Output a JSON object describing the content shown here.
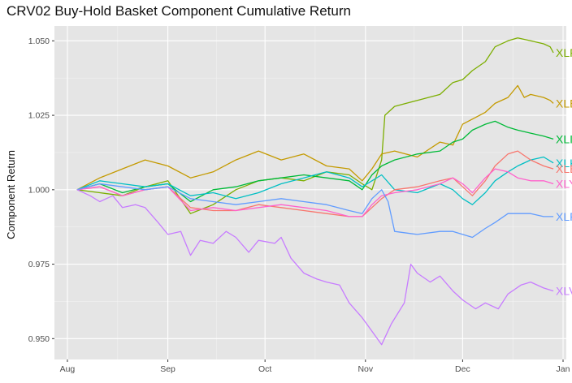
{
  "chart_data": {
    "type": "line",
    "title": "CRV02 Buy-Hold Basket Component Cumulative Return",
    "xlabel": "",
    "ylabel": "Component Return",
    "xlim": [
      "2017-07-28",
      "2018-01-02"
    ],
    "ylim": [
      0.943,
      1.055
    ],
    "x_ticks": [
      {
        "label": "Aug",
        "date": "2017-08-01"
      },
      {
        "label": "Sep",
        "date": "2017-09-01"
      },
      {
        "label": "Oct",
        "date": "2017-10-01"
      },
      {
        "label": "Nov",
        "date": "2017-11-01"
      },
      {
        "label": "Dec",
        "date": "2017-12-01"
      },
      {
        "label": "Jan",
        "date": "2018-01-01"
      }
    ],
    "y_ticks": [
      0.95,
      0.975,
      1.0,
      1.025,
      1.05
    ],
    "y_tick_labels": [
      "0.950",
      "0.975",
      "1.000",
      "1.025",
      "1.050"
    ],
    "grid": true,
    "legend": "direct labels at line ends",
    "background": "#e5e5e5",
    "series": [
      {
        "name": "XLF",
        "color": "#7cae00",
        "points": [
          [
            "2017-08-04",
            1.0
          ],
          [
            "2017-08-11",
            0.999
          ],
          [
            "2017-08-18",
            0.998
          ],
          [
            "2017-08-25",
            1.001
          ],
          [
            "2017-09-01",
            1.003
          ],
          [
            "2017-09-08",
            0.992
          ],
          [
            "2017-09-15",
            0.995
          ],
          [
            "2017-09-22",
            1.0
          ],
          [
            "2017-09-29",
            1.003
          ],
          [
            "2017-10-06",
            1.004
          ],
          [
            "2017-10-13",
            1.003
          ],
          [
            "2017-10-20",
            1.006
          ],
          [
            "2017-10-27",
            1.005
          ],
          [
            "2017-10-31",
            1.002
          ],
          [
            "2017-11-03",
            1.0
          ],
          [
            "2017-11-06",
            1.01
          ],
          [
            "2017-11-07",
            1.025
          ],
          [
            "2017-11-10",
            1.028
          ],
          [
            "2017-11-17",
            1.03
          ],
          [
            "2017-11-24",
            1.032
          ],
          [
            "2017-11-28",
            1.036
          ],
          [
            "2017-12-01",
            1.037
          ],
          [
            "2017-12-04",
            1.04
          ],
          [
            "2017-12-08",
            1.043
          ],
          [
            "2017-12-11",
            1.048
          ],
          [
            "2017-12-15",
            1.05
          ],
          [
            "2017-12-18",
            1.051
          ],
          [
            "2017-12-22",
            1.05
          ],
          [
            "2017-12-26",
            1.049
          ],
          [
            "2017-12-28",
            1.048
          ],
          [
            "2017-12-29",
            1.046
          ]
        ]
      },
      {
        "name": "XLE",
        "color": "#c49a00",
        "points": [
          [
            "2017-08-04",
            1.0
          ],
          [
            "2017-08-11",
            1.004
          ],
          [
            "2017-08-18",
            1.007
          ],
          [
            "2017-08-25",
            1.01
          ],
          [
            "2017-09-01",
            1.008
          ],
          [
            "2017-09-08",
            1.004
          ],
          [
            "2017-09-15",
            1.006
          ],
          [
            "2017-09-22",
            1.01
          ],
          [
            "2017-09-29",
            1.013
          ],
          [
            "2017-10-06",
            1.01
          ],
          [
            "2017-10-13",
            1.012
          ],
          [
            "2017-10-20",
            1.008
          ],
          [
            "2017-10-27",
            1.007
          ],
          [
            "2017-10-31",
            1.003
          ],
          [
            "2017-11-03",
            1.007
          ],
          [
            "2017-11-06",
            1.012
          ],
          [
            "2017-11-10",
            1.013
          ],
          [
            "2017-11-17",
            1.011
          ],
          [
            "2017-11-24",
            1.016
          ],
          [
            "2017-11-28",
            1.015
          ],
          [
            "2017-12-01",
            1.022
          ],
          [
            "2017-12-08",
            1.026
          ],
          [
            "2017-12-11",
            1.029
          ],
          [
            "2017-12-15",
            1.031
          ],
          [
            "2017-12-18",
            1.035
          ],
          [
            "2017-12-20",
            1.031
          ],
          [
            "2017-12-22",
            1.032
          ],
          [
            "2017-12-26",
            1.031
          ],
          [
            "2017-12-28",
            1.03
          ],
          [
            "2017-12-29",
            1.029
          ]
        ]
      },
      {
        "name": "XLI",
        "color": "#00ba38",
        "points": [
          [
            "2017-08-04",
            1.0
          ],
          [
            "2017-08-11",
            1.002
          ],
          [
            "2017-08-18",
            0.999
          ],
          [
            "2017-08-25",
            1.001
          ],
          [
            "2017-09-01",
            1.002
          ],
          [
            "2017-09-08",
            0.996
          ],
          [
            "2017-09-15",
            1.0
          ],
          [
            "2017-09-22",
            1.001
          ],
          [
            "2017-09-29",
            1.003
          ],
          [
            "2017-10-06",
            1.004
          ],
          [
            "2017-10-13",
            1.005
          ],
          [
            "2017-10-20",
            1.004
          ],
          [
            "2017-10-27",
            1.003
          ],
          [
            "2017-10-31",
            1.0
          ],
          [
            "2017-11-03",
            1.005
          ],
          [
            "2017-11-06",
            1.008
          ],
          [
            "2017-11-10",
            1.01
          ],
          [
            "2017-11-17",
            1.012
          ],
          [
            "2017-11-24",
            1.013
          ],
          [
            "2017-11-28",
            1.016
          ],
          [
            "2017-12-01",
            1.017
          ],
          [
            "2017-12-04",
            1.02
          ],
          [
            "2017-12-08",
            1.022
          ],
          [
            "2017-12-11",
            1.023
          ],
          [
            "2017-12-15",
            1.021
          ],
          [
            "2017-12-18",
            1.02
          ],
          [
            "2017-12-22",
            1.019
          ],
          [
            "2017-12-26",
            1.018
          ],
          [
            "2017-12-29",
            1.017
          ]
        ]
      },
      {
        "name": "XLK",
        "color": "#00bfc4",
        "points": [
          [
            "2017-08-04",
            1.0
          ],
          [
            "2017-08-11",
            1.003
          ],
          [
            "2017-08-18",
            1.002
          ],
          [
            "2017-08-25",
            1.001
          ],
          [
            "2017-09-01",
            1.002
          ],
          [
            "2017-09-08",
            0.998
          ],
          [
            "2017-09-15",
            0.999
          ],
          [
            "2017-09-22",
            0.997
          ],
          [
            "2017-09-29",
            0.999
          ],
          [
            "2017-10-06",
            1.002
          ],
          [
            "2017-10-13",
            1.004
          ],
          [
            "2017-10-20",
            1.006
          ],
          [
            "2017-10-27",
            1.004
          ],
          [
            "2017-10-31",
            1.001
          ],
          [
            "2017-11-03",
            1.003
          ],
          [
            "2017-11-06",
            1.005
          ],
          [
            "2017-11-10",
            1.0
          ],
          [
            "2017-11-17",
            0.999
          ],
          [
            "2017-11-24",
            1.002
          ],
          [
            "2017-11-28",
            1.0
          ],
          [
            "2017-12-01",
            0.997
          ],
          [
            "2017-12-04",
            0.995
          ],
          [
            "2017-12-08",
            0.999
          ],
          [
            "2017-12-11",
            1.003
          ],
          [
            "2017-12-15",
            1.006
          ],
          [
            "2017-12-18",
            1.008
          ],
          [
            "2017-12-22",
            1.01
          ],
          [
            "2017-12-26",
            1.011
          ],
          [
            "2017-12-29",
            1.009
          ]
        ]
      },
      {
        "name": "XLB",
        "color": "#f8766d",
        "points": [
          [
            "2017-08-04",
            1.0
          ],
          [
            "2017-08-11",
            1.001
          ],
          [
            "2017-08-18",
            0.998
          ],
          [
            "2017-08-25",
            1.0
          ],
          [
            "2017-09-01",
            1.001
          ],
          [
            "2017-09-08",
            0.994
          ],
          [
            "2017-09-15",
            0.993
          ],
          [
            "2017-09-22",
            0.993
          ],
          [
            "2017-09-29",
            0.995
          ],
          [
            "2017-10-06",
            0.994
          ],
          [
            "2017-10-13",
            0.993
          ],
          [
            "2017-10-20",
            0.992
          ],
          [
            "2017-10-27",
            0.991
          ],
          [
            "2017-10-31",
            0.991
          ],
          [
            "2017-11-03",
            0.994
          ],
          [
            "2017-11-06",
            0.997
          ],
          [
            "2017-11-10",
            1.0
          ],
          [
            "2017-11-17",
            1.001
          ],
          [
            "2017-11-24",
            1.003
          ],
          [
            "2017-11-28",
            1.004
          ],
          [
            "2017-12-01",
            1.001
          ],
          [
            "2017-12-04",
            0.998
          ],
          [
            "2017-12-08",
            1.003
          ],
          [
            "2017-12-11",
            1.008
          ],
          [
            "2017-12-15",
            1.012
          ],
          [
            "2017-12-18",
            1.013
          ],
          [
            "2017-12-22",
            1.01
          ],
          [
            "2017-12-26",
            1.008
          ],
          [
            "2017-12-29",
            1.007
          ]
        ]
      },
      {
        "name": "XLY",
        "color": "#ff61cc",
        "points": [
          [
            "2017-08-04",
            1.0
          ],
          [
            "2017-08-11",
            1.001
          ],
          [
            "2017-08-18",
            0.998
          ],
          [
            "2017-08-25",
            1.0
          ],
          [
            "2017-09-01",
            1.001
          ],
          [
            "2017-09-08",
            0.993
          ],
          [
            "2017-09-15",
            0.994
          ],
          [
            "2017-09-22",
            0.993
          ],
          [
            "2017-09-29",
            0.994
          ],
          [
            "2017-10-06",
            0.995
          ],
          [
            "2017-10-13",
            0.994
          ],
          [
            "2017-10-20",
            0.993
          ],
          [
            "2017-10-27",
            0.991
          ],
          [
            "2017-10-31",
            0.991
          ],
          [
            "2017-11-03",
            0.995
          ],
          [
            "2017-11-06",
            0.998
          ],
          [
            "2017-11-10",
            0.999
          ],
          [
            "2017-11-17",
            1.0
          ],
          [
            "2017-11-24",
            1.002
          ],
          [
            "2017-11-28",
            1.004
          ],
          [
            "2017-12-01",
            1.002
          ],
          [
            "2017-12-04",
            0.999
          ],
          [
            "2017-12-08",
            1.004
          ],
          [
            "2017-12-11",
            1.007
          ],
          [
            "2017-12-15",
            1.006
          ],
          [
            "2017-12-18",
            1.004
          ],
          [
            "2017-12-22",
            1.003
          ],
          [
            "2017-12-26",
            1.003
          ],
          [
            "2017-12-29",
            1.002
          ]
        ]
      },
      {
        "name": "XLP",
        "color": "#619cff",
        "points": [
          [
            "2017-08-04",
            1.0
          ],
          [
            "2017-08-11",
            1.002
          ],
          [
            "2017-08-18",
            1.001
          ],
          [
            "2017-08-25",
            1.0
          ],
          [
            "2017-09-01",
            1.001
          ],
          [
            "2017-09-08",
            0.997
          ],
          [
            "2017-09-15",
            0.996
          ],
          [
            "2017-09-22",
            0.995
          ],
          [
            "2017-09-29",
            0.996
          ],
          [
            "2017-10-06",
            0.997
          ],
          [
            "2017-10-13",
            0.996
          ],
          [
            "2017-10-20",
            0.995
          ],
          [
            "2017-10-27",
            0.993
          ],
          [
            "2017-10-31",
            0.992
          ],
          [
            "2017-11-03",
            0.997
          ],
          [
            "2017-11-06",
            1.0
          ],
          [
            "2017-11-08",
            0.996
          ],
          [
            "2017-11-10",
            0.986
          ],
          [
            "2017-11-17",
            0.985
          ],
          [
            "2017-11-24",
            0.986
          ],
          [
            "2017-11-28",
            0.986
          ],
          [
            "2017-12-01",
            0.985
          ],
          [
            "2017-12-04",
            0.984
          ],
          [
            "2017-12-08",
            0.987
          ],
          [
            "2017-12-11",
            0.989
          ],
          [
            "2017-12-15",
            0.992
          ],
          [
            "2017-12-18",
            0.992
          ],
          [
            "2017-12-22",
            0.992
          ],
          [
            "2017-12-26",
            0.991
          ],
          [
            "2017-12-29",
            0.991
          ]
        ]
      },
      {
        "name": "XLV",
        "color": "#c77cff",
        "points": [
          [
            "2017-08-04",
            1.0
          ],
          [
            "2017-08-08",
            0.998
          ],
          [
            "2017-08-11",
            0.996
          ],
          [
            "2017-08-15",
            0.998
          ],
          [
            "2017-08-18",
            0.994
          ],
          [
            "2017-08-22",
            0.995
          ],
          [
            "2017-08-25",
            0.994
          ],
          [
            "2017-08-29",
            0.989
          ],
          [
            "2017-09-01",
            0.985
          ],
          [
            "2017-09-05",
            0.986
          ],
          [
            "2017-09-08",
            0.978
          ],
          [
            "2017-09-11",
            0.983
          ],
          [
            "2017-09-15",
            0.982
          ],
          [
            "2017-09-19",
            0.986
          ],
          [
            "2017-09-22",
            0.984
          ],
          [
            "2017-09-26",
            0.979
          ],
          [
            "2017-09-29",
            0.983
          ],
          [
            "2017-10-04",
            0.982
          ],
          [
            "2017-10-06",
            0.984
          ],
          [
            "2017-10-09",
            0.977
          ],
          [
            "2017-10-13",
            0.972
          ],
          [
            "2017-10-17",
            0.97
          ],
          [
            "2017-10-20",
            0.969
          ],
          [
            "2017-10-24",
            0.968
          ],
          [
            "2017-10-27",
            0.962
          ],
          [
            "2017-10-31",
            0.957
          ],
          [
            "2017-11-02",
            0.954
          ],
          [
            "2017-11-06",
            0.948
          ],
          [
            "2017-11-09",
            0.955
          ],
          [
            "2017-11-13",
            0.962
          ],
          [
            "2017-11-15",
            0.975
          ],
          [
            "2017-11-17",
            0.972
          ],
          [
            "2017-11-21",
            0.969
          ],
          [
            "2017-11-24",
            0.971
          ],
          [
            "2017-11-28",
            0.966
          ],
          [
            "2017-12-01",
            0.963
          ],
          [
            "2017-12-05",
            0.96
          ],
          [
            "2017-12-08",
            0.962
          ],
          [
            "2017-12-12",
            0.96
          ],
          [
            "2017-12-15",
            0.965
          ],
          [
            "2017-12-19",
            0.968
          ],
          [
            "2017-12-22",
            0.969
          ],
          [
            "2017-12-26",
            0.967
          ],
          [
            "2017-12-29",
            0.966
          ]
        ]
      }
    ]
  }
}
